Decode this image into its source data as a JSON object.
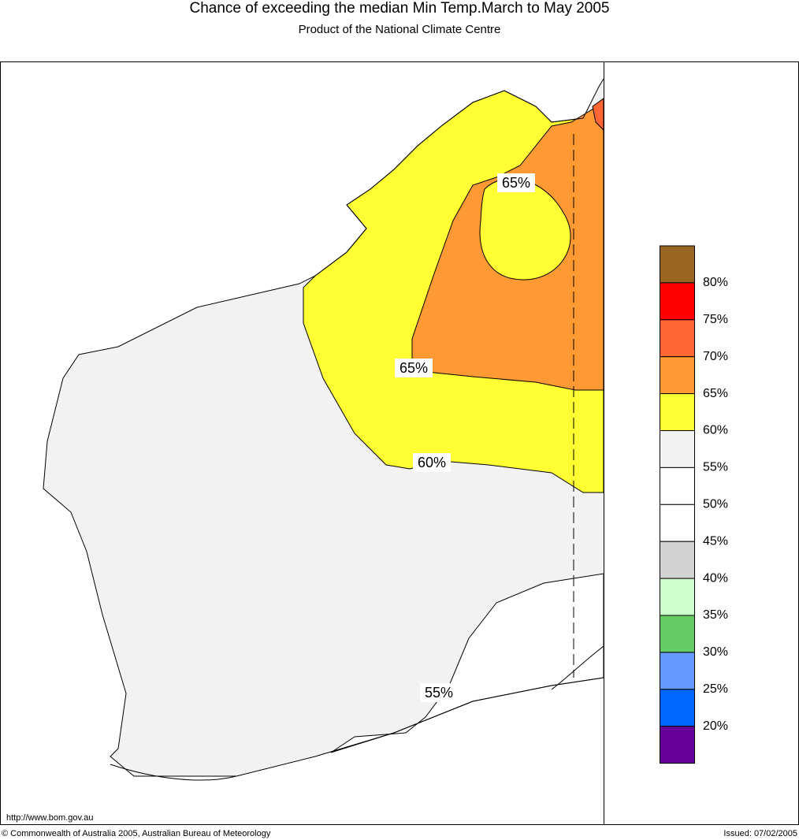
{
  "header": {
    "title": "Chance of exceeding the median Min Temp.March to May 2005",
    "subtitle": "Product of the National Climate Centre"
  },
  "map": {
    "contour_labels": [
      "65%",
      "65%",
      "60%",
      "55%"
    ]
  },
  "legend": {
    "labels": [
      "80%",
      "75%",
      "70%",
      "65%",
      "60%",
      "55%",
      "50%",
      "45%",
      "40%",
      "35%",
      "30%",
      "25%",
      "20%"
    ],
    "colors": [
      "#996622",
      "#ff0000",
      "#ff6633",
      "#ff9933",
      "#ffff33",
      "#f2f2f2",
      "#ffffff",
      "#ffffff",
      "#d3d3d3",
      "#ccffcc",
      "#66cc66",
      "#6699ff",
      "#0066ff",
      "#660099"
    ]
  },
  "footer": {
    "url": "http://www.bom.gov.au",
    "copyright": "© Commonwealth of Australia 2005, Australian Bureau of Meteorology",
    "issued": "Issued: 07/02/2005"
  }
}
